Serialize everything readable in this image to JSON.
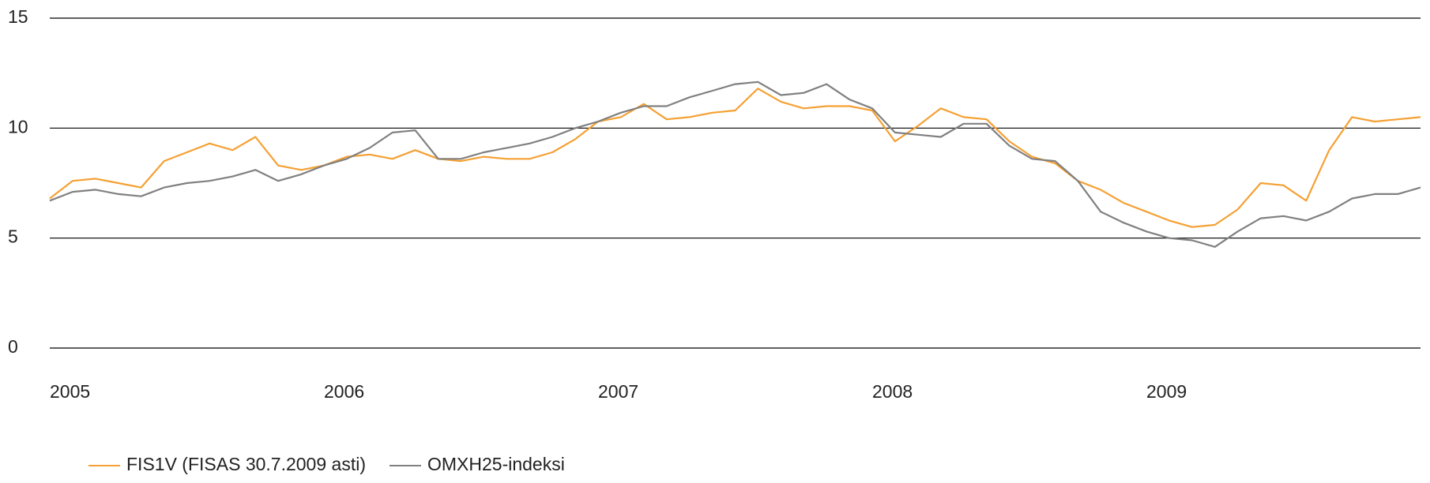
{
  "chart_data": {
    "type": "line",
    "x": [
      2005,
      2005.083,
      2005.167,
      2005.25,
      2005.333,
      2005.417,
      2005.5,
      2005.583,
      2005.667,
      2005.75,
      2005.833,
      2005.917,
      2006,
      2006.083,
      2006.167,
      2006.25,
      2006.333,
      2006.417,
      2006.5,
      2006.583,
      2006.667,
      2006.75,
      2006.833,
      2006.917,
      2007,
      2007.083,
      2007.167,
      2007.25,
      2007.333,
      2007.417,
      2007.5,
      2007.583,
      2007.667,
      2007.75,
      2007.833,
      2007.917,
      2008,
      2008.083,
      2008.167,
      2008.25,
      2008.333,
      2008.417,
      2008.5,
      2008.583,
      2008.667,
      2008.75,
      2008.833,
      2008.917,
      2009,
      2009.083,
      2009.167,
      2009.25,
      2009.333,
      2009.417,
      2009.5,
      2009.583,
      2009.667,
      2009.75,
      2009.833,
      2009.917,
      2010
    ],
    "series": [
      {
        "name": "FIS1V (FISAS 30.7.2009 asti)",
        "color": "#f5a033",
        "values": [
          6.8,
          7.6,
          7.7,
          7.5,
          7.3,
          8.5,
          8.9,
          9.3,
          9.0,
          9.6,
          8.3,
          8.1,
          8.3,
          8.7,
          8.8,
          8.6,
          9.0,
          8.6,
          8.5,
          8.7,
          8.6,
          8.6,
          8.9,
          9.5,
          10.3,
          10.5,
          11.1,
          10.4,
          10.5,
          10.7,
          10.8,
          11.8,
          11.2,
          10.9,
          11.0,
          11.0,
          10.8,
          9.4,
          10.1,
          10.9,
          10.5,
          10.4,
          9.4,
          8.7,
          8.4,
          7.6,
          7.2,
          6.6,
          6.2,
          5.8,
          5.5,
          5.6,
          6.3,
          7.5,
          7.4,
          6.7,
          9.0,
          10.5,
          10.3,
          10.4,
          10.5
        ]
      },
      {
        "name": "OMXH25-indeksi",
        "color": "#808080",
        "values": [
          6.7,
          7.1,
          7.2,
          7.0,
          6.9,
          7.3,
          7.5,
          7.6,
          7.8,
          8.1,
          7.6,
          7.9,
          8.3,
          8.6,
          9.1,
          9.8,
          9.9,
          8.6,
          8.6,
          8.9,
          9.1,
          9.3,
          9.6,
          10.0,
          10.3,
          10.7,
          11.0,
          11.0,
          11.4,
          11.7,
          12.0,
          12.1,
          11.5,
          11.6,
          12.0,
          11.3,
          10.9,
          9.8,
          9.7,
          9.6,
          10.2,
          10.2,
          9.2,
          8.6,
          8.5,
          7.6,
          6.2,
          5.7,
          5.3,
          5.0,
          4.9,
          4.6,
          5.3,
          5.9,
          6.0,
          5.8,
          6.2,
          6.8,
          7.0,
          7.0,
          7.3
        ]
      }
    ],
    "xlim": [
      2005,
      2010
    ],
    "xticks": [
      2005,
      2006,
      2007,
      2008,
      2009
    ],
    "ylim": [
      0,
      15
    ],
    "yticks": [
      0,
      5,
      10,
      15
    ],
    "grid": true
  }
}
